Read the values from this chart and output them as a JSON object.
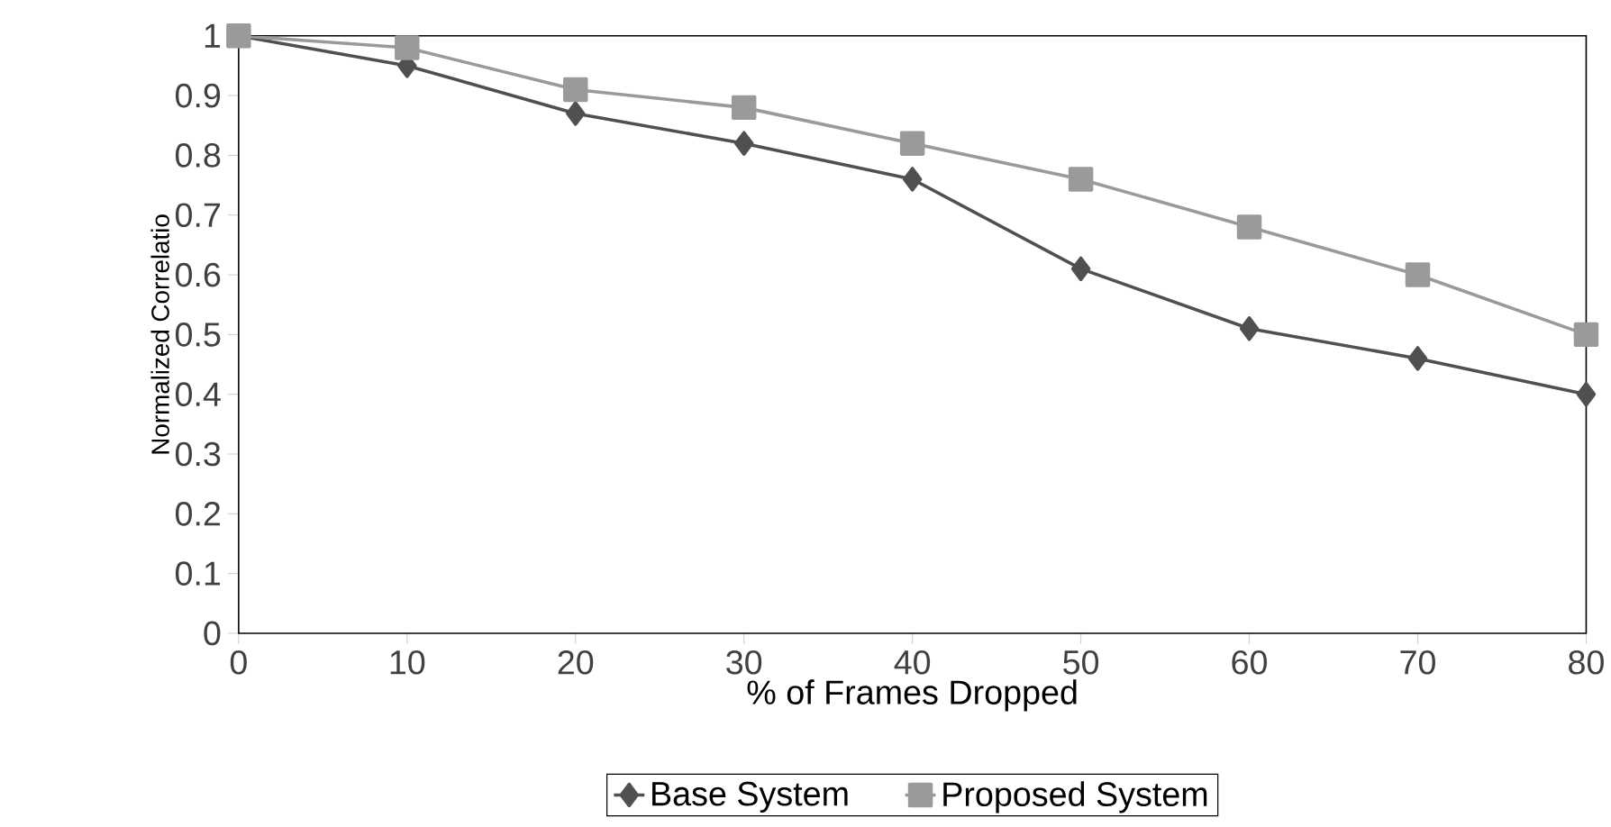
{
  "chart_data": {
    "type": "line",
    "xlabel": "% of Frames Dropped",
    "ylabel": "Normalized Correlatio",
    "x": [
      0,
      10,
      20,
      30,
      40,
      50,
      60,
      70,
      80
    ],
    "series": [
      {
        "name": "Base System",
        "color": "#505050",
        "marker": "diamond",
        "values": [
          1,
          0.95,
          0.87,
          0.82,
          0.76,
          0.61,
          0.51,
          0.46,
          0.4
        ]
      },
      {
        "name": "Proposed System",
        "color": "#9a9a9a",
        "marker": "square",
        "values": [
          1,
          0.98,
          0.91,
          0.88,
          0.82,
          0.76,
          0.68,
          0.6,
          0.5
        ]
      }
    ],
    "xlim": [
      0,
      80
    ],
    "xticks": [
      0,
      10,
      20,
      30,
      40,
      50,
      60,
      70,
      80
    ],
    "ylim": [
      0,
      1
    ],
    "yticks": [
      0,
      0.1,
      0.2,
      0.3,
      0.4,
      0.5,
      0.6,
      0.7,
      0.8,
      0.9,
      1
    ],
    "grid": false,
    "legend": "bottom",
    "line_style": "solid"
  }
}
